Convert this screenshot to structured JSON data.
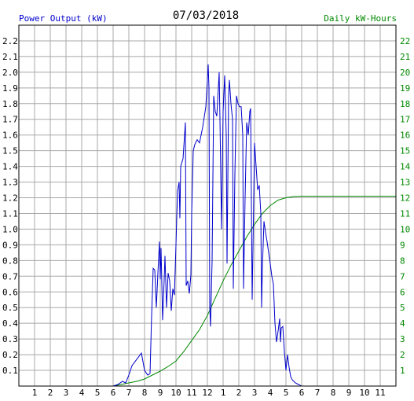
{
  "chart_data": {
    "type": "line",
    "title": "07/03/2018",
    "ylabel_left": "Power Output (kW)",
    "ylabel_right": "Daily kW-Hours",
    "x_ticks": [
      "1",
      "2",
      "3",
      "4",
      "5",
      "6",
      "7",
      "8",
      "9",
      "10",
      "11",
      "12",
      "1",
      "2",
      "3",
      "4",
      "5",
      "6",
      "7",
      "8",
      "9",
      "10",
      "11"
    ],
    "x_range": [
      0,
      24
    ],
    "y_left_ticks": [
      "0.1",
      "0.2",
      "0.3",
      "0.4",
      "0.5",
      "0.6",
      "0.7",
      "0.8",
      "0.9",
      "1.0",
      "1.1",
      "1.2",
      "1.3",
      "1.4",
      "1.5",
      "1.6",
      "1.7",
      "1.8",
      "1.9",
      "2.0",
      "2.1",
      "2.2"
    ],
    "y_left_range": [
      0,
      2.3
    ],
    "y_right_ticks": [
      "1",
      "2",
      "3",
      "4",
      "5",
      "6",
      "7",
      "8",
      "9",
      "10",
      "11",
      "12",
      "13",
      "14",
      "15",
      "16",
      "17",
      "18",
      "19",
      "20",
      "21",
      "22"
    ],
    "y_right_range": [
      0,
      23
    ],
    "grid": true,
    "colors": {
      "power": "#0000cc",
      "energy": "#008800",
      "grid": "#a8a8a8",
      "left_axis_text": "#0000cc",
      "right_axis_text": "#008800",
      "title_text": "#000000",
      "tick_text": "#000000"
    },
    "series": [
      {
        "name": "Power Output (kW)",
        "axis": "left",
        "points": [
          [
            6.0,
            0
          ],
          [
            6.3,
            0.01
          ],
          [
            6.6,
            0.03
          ],
          [
            6.8,
            0.02
          ],
          [
            7.0,
            0.07
          ],
          [
            7.2,
            0.13
          ],
          [
            7.5,
            0.17
          ],
          [
            7.8,
            0.21
          ],
          [
            8.0,
            0.1
          ],
          [
            8.2,
            0.07
          ],
          [
            8.35,
            0.08
          ],
          [
            8.45,
            0.45
          ],
          [
            8.55,
            0.75
          ],
          [
            8.65,
            0.74
          ],
          [
            8.75,
            0.5
          ],
          [
            8.85,
            0.72
          ],
          [
            8.95,
            0.92
          ],
          [
            9.0,
            0.68
          ],
          [
            9.05,
            0.88
          ],
          [
            9.15,
            0.42
          ],
          [
            9.25,
            0.68
          ],
          [
            9.3,
            0.83
          ],
          [
            9.4,
            0.5
          ],
          [
            9.5,
            0.72
          ],
          [
            9.6,
            0.67
          ],
          [
            9.7,
            0.48
          ],
          [
            9.8,
            0.62
          ],
          [
            9.9,
            0.58
          ],
          [
            10.0,
            0.9
          ],
          [
            10.1,
            1.24
          ],
          [
            10.2,
            1.3
          ],
          [
            10.25,
            1.07
          ],
          [
            10.3,
            1.4
          ],
          [
            10.45,
            1.45
          ],
          [
            10.6,
            1.68
          ],
          [
            10.65,
            0.64
          ],
          [
            10.75,
            0.67
          ],
          [
            10.85,
            0.59
          ],
          [
            10.95,
            0.71
          ],
          [
            11.0,
            1.1
          ],
          [
            11.1,
            1.5
          ],
          [
            11.2,
            1.54
          ],
          [
            11.35,
            1.57
          ],
          [
            11.5,
            1.55
          ],
          [
            11.7,
            1.65
          ],
          [
            11.9,
            1.78
          ],
          [
            12.0,
            1.95
          ],
          [
            12.05,
            2.05
          ],
          [
            12.1,
            1.9
          ],
          [
            12.15,
            0.5
          ],
          [
            12.2,
            0.38
          ],
          [
            12.3,
            0.8
          ],
          [
            12.4,
            1.85
          ],
          [
            12.5,
            1.75
          ],
          [
            12.6,
            1.72
          ],
          [
            12.75,
            2.0
          ],
          [
            12.8,
            1.7
          ],
          [
            12.9,
            1.0
          ],
          [
            13.0,
            1.75
          ],
          [
            13.1,
            1.98
          ],
          [
            13.2,
            1.6
          ],
          [
            13.25,
            0.78
          ],
          [
            13.35,
            1.85
          ],
          [
            13.4,
            1.95
          ],
          [
            13.5,
            1.8
          ],
          [
            13.6,
            1.7
          ],
          [
            13.65,
            0.62
          ],
          [
            13.75,
            1.35
          ],
          [
            13.85,
            1.85
          ],
          [
            13.95,
            1.8
          ],
          [
            14.05,
            1.78
          ],
          [
            14.15,
            1.78
          ],
          [
            14.25,
            1.6
          ],
          [
            14.3,
            0.62
          ],
          [
            14.4,
            1.2
          ],
          [
            14.5,
            1.68
          ],
          [
            14.6,
            1.6
          ],
          [
            14.7,
            1.75
          ],
          [
            14.75,
            1.77
          ],
          [
            14.85,
            0.55
          ],
          [
            14.95,
            1.2
          ],
          [
            15.0,
            1.55
          ],
          [
            15.1,
            1.4
          ],
          [
            15.2,
            1.25
          ],
          [
            15.3,
            1.28
          ],
          [
            15.4,
            1.1
          ],
          [
            15.45,
            0.5
          ],
          [
            15.5,
            0.75
          ],
          [
            15.6,
            1.05
          ],
          [
            15.7,
            0.98
          ],
          [
            15.8,
            0.92
          ],
          [
            15.9,
            0.85
          ],
          [
            16.0,
            0.78
          ],
          [
            16.1,
            0.7
          ],
          [
            16.2,
            0.65
          ],
          [
            16.3,
            0.4
          ],
          [
            16.4,
            0.28
          ],
          [
            16.5,
            0.35
          ],
          [
            16.6,
            0.43
          ],
          [
            16.65,
            0.28
          ],
          [
            16.7,
            0.37
          ],
          [
            16.8,
            0.38
          ],
          [
            16.9,
            0.22
          ],
          [
            17.0,
            0.1
          ],
          [
            17.1,
            0.2
          ],
          [
            17.2,
            0.12
          ],
          [
            17.3,
            0.06
          ],
          [
            17.4,
            0.04
          ],
          [
            17.6,
            0.02
          ],
          [
            17.8,
            0.01
          ],
          [
            18.0,
            0
          ]
        ]
      },
      {
        "name": "Daily kW-Hours",
        "axis": "right",
        "points": [
          [
            6.0,
            0
          ],
          [
            6.5,
            0.1
          ],
          [
            7.0,
            0.2
          ],
          [
            7.5,
            0.3
          ],
          [
            8.0,
            0.45
          ],
          [
            8.5,
            0.7
          ],
          [
            9.0,
            0.95
          ],
          [
            9.5,
            1.25
          ],
          [
            10.0,
            1.6
          ],
          [
            10.5,
            2.2
          ],
          [
            11.0,
            2.9
          ],
          [
            11.5,
            3.6
          ],
          [
            12.0,
            4.5
          ],
          [
            12.5,
            5.6
          ],
          [
            13.0,
            6.7
          ],
          [
            13.5,
            7.7
          ],
          [
            14.0,
            8.6
          ],
          [
            14.5,
            9.5
          ],
          [
            15.0,
            10.3
          ],
          [
            15.5,
            11.0
          ],
          [
            16.0,
            11.5
          ],
          [
            16.5,
            11.85
          ],
          [
            17.0,
            12.0
          ],
          [
            17.5,
            12.08
          ],
          [
            18.0,
            12.1
          ],
          [
            24.0,
            12.1
          ]
        ]
      }
    ]
  }
}
